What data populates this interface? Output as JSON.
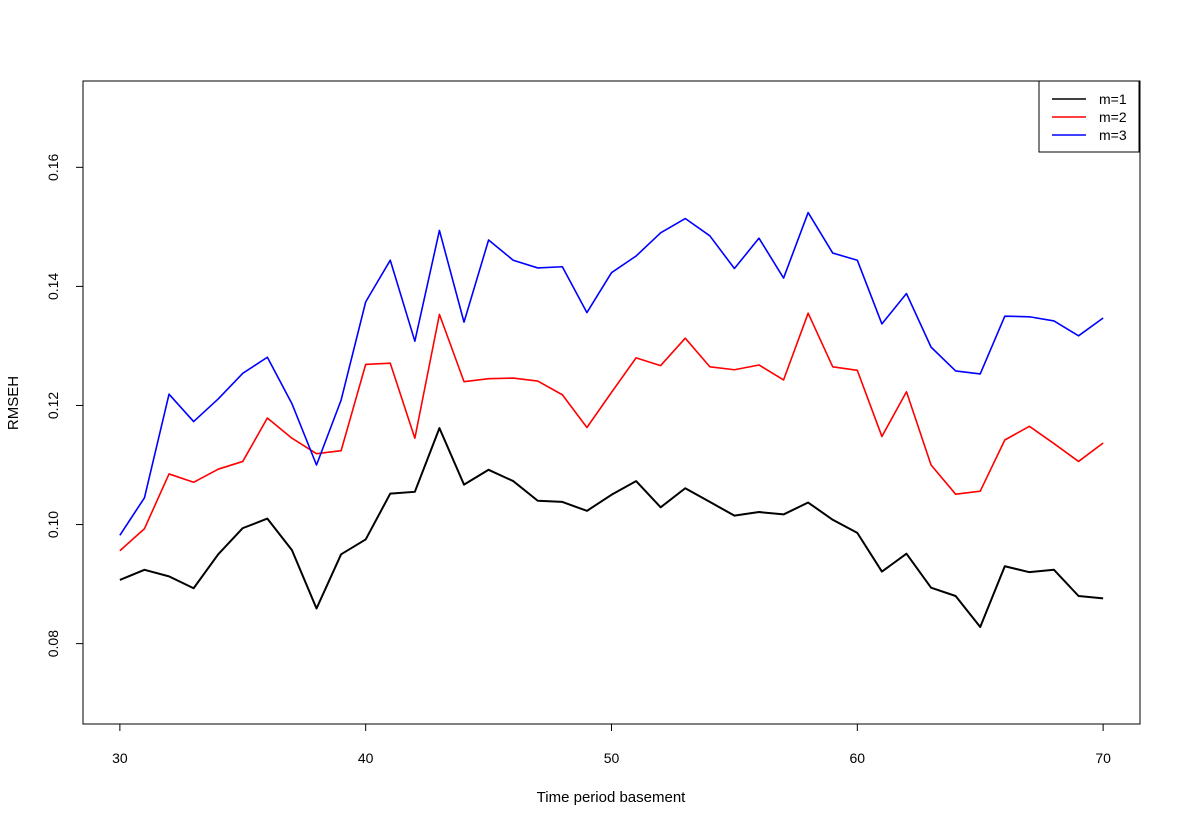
{
  "chart_data": {
    "type": "line",
    "title": "",
    "xlabel": "Time period basement",
    "ylabel": "RMSEH",
    "x": [
      30,
      31,
      32,
      33,
      34,
      35,
      36,
      37,
      38,
      39,
      40,
      41,
      42,
      43,
      44,
      45,
      46,
      47,
      48,
      49,
      50,
      51,
      52,
      53,
      54,
      55,
      56,
      57,
      58,
      59,
      60,
      61,
      62,
      63,
      64,
      65,
      66,
      67,
      68,
      69,
      70
    ],
    "xlim": [
      28.5,
      71.5
    ],
    "ylim": [
      0.0665,
      0.1745
    ],
    "xticks": [
      30,
      40,
      50,
      60,
      70
    ],
    "xtick_labels": [
      "30",
      "40",
      "50",
      "60",
      "70"
    ],
    "yticks": [
      0.08,
      0.1,
      0.12,
      0.14,
      0.16
    ],
    "ytick_labels": [
      "0.08",
      "0.10",
      "0.12",
      "0.14",
      "0.16"
    ],
    "grid": false,
    "legend_position": "top-right",
    "series": [
      {
        "name": "m=1",
        "color": "#000000",
        "values": [
          0.0907,
          0.0924,
          0.0913,
          0.0893,
          0.095,
          0.0994,
          0.101,
          0.0957,
          0.0859,
          0.095,
          0.0975,
          0.1052,
          0.1055,
          0.1162,
          0.1067,
          0.1092,
          0.1073,
          0.104,
          0.1038,
          0.1023,
          0.105,
          0.1073,
          0.1029,
          0.1061,
          0.1038,
          0.1015,
          0.1021,
          0.1017,
          0.1037,
          0.1008,
          0.0986,
          0.0921,
          0.0951,
          0.0894,
          0.088,
          0.0828,
          0.093,
          0.092,
          0.0924,
          0.088,
          0.0876
        ]
      },
      {
        "name": "m=2",
        "color": "#ff0000",
        "values": [
          0.0956,
          0.0993,
          0.1085,
          0.1071,
          0.1093,
          0.1106,
          0.1179,
          0.1145,
          0.1119,
          0.1124,
          0.1269,
          0.1271,
          0.1145,
          0.1353,
          0.124,
          0.1245,
          0.1246,
          0.1241,
          0.1218,
          0.1163,
          0.1222,
          0.128,
          0.1267,
          0.1313,
          0.1265,
          0.126,
          0.1268,
          0.1243,
          0.1355,
          0.1265,
          0.1259,
          0.1148,
          0.1223,
          0.11,
          0.1051,
          0.1056,
          0.1142,
          0.1165,
          0.1136,
          0.1106,
          0.1137
        ]
      },
      {
        "name": "m=3",
        "color": "#0000ff",
        "values": [
          0.0982,
          0.1045,
          0.1219,
          0.1173,
          0.1211,
          0.1254,
          0.1281,
          0.1203,
          0.11,
          0.1209,
          0.1374,
          0.1444,
          0.1308,
          0.1494,
          0.134,
          0.1478,
          0.1444,
          0.1431,
          0.1433,
          0.1356,
          0.1423,
          0.1451,
          0.149,
          0.1514,
          0.1485,
          0.143,
          0.1481,
          0.1414,
          0.1524,
          0.1456,
          0.1444,
          0.1337,
          0.1388,
          0.1298,
          0.1258,
          0.1253,
          0.135,
          0.1349,
          0.1342,
          0.1317,
          0.1347
        ]
      }
    ]
  }
}
